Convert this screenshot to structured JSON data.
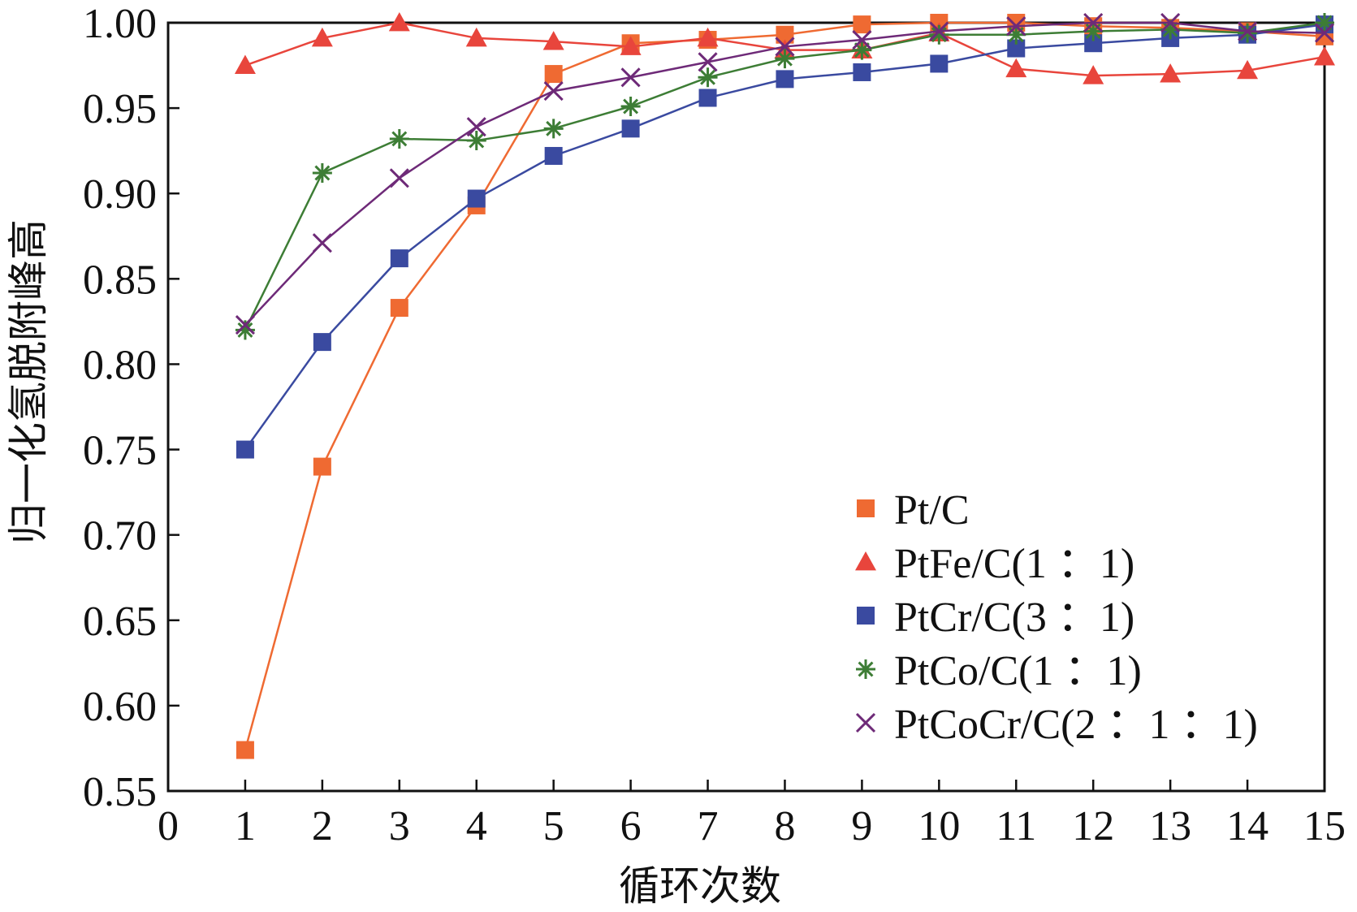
{
  "chart_data": {
    "type": "line",
    "title": "",
    "xlabel": "循环次数",
    "ylabel": "归一化氢脱附峰高",
    "xlim": [
      0,
      15
    ],
    "ylim": [
      0.55,
      1.0
    ],
    "xticks": [
      "0",
      "1",
      "2",
      "3",
      "4",
      "5",
      "6",
      "7",
      "8",
      "9",
      "10",
      "11",
      "12",
      "13",
      "14",
      "15"
    ],
    "yticks": [
      "0.55",
      "0.60",
      "0.65",
      "0.70",
      "0.75",
      "0.80",
      "0.85",
      "0.90",
      "0.95",
      "1.00"
    ],
    "legend_position": "bottom-right",
    "x": [
      1,
      2,
      3,
      4,
      5,
      6,
      7,
      8,
      9,
      10,
      11,
      12,
      13,
      14,
      15
    ],
    "series": [
      {
        "name": "Pt/C",
        "color": "#ef6a32",
        "marker": "square",
        "values": [
          0.574,
          0.74,
          0.833,
          0.893,
          0.97,
          0.988,
          0.99,
          0.993,
          0.999,
          1.0,
          1.0,
          0.998,
          0.997,
          0.995,
          0.992
        ]
      },
      {
        "name": "PtFe/C(1 ：1)",
        "color": "#e8453c",
        "marker": "triangle",
        "values": [
          0.975,
          0.991,
          1.0,
          0.991,
          0.989,
          0.986,
          0.991,
          0.984,
          0.984,
          0.994,
          0.973,
          0.969,
          0.97,
          0.972,
          0.98
        ]
      },
      {
        "name": "PtCr/C(3 ：1)",
        "color": "#3a4aa0",
        "marker": "square",
        "values": [
          0.75,
          0.813,
          0.862,
          0.897,
          0.922,
          0.938,
          0.956,
          0.967,
          0.971,
          0.976,
          0.985,
          0.988,
          0.991,
          0.993,
          0.999
        ]
      },
      {
        "name": "PtCo/C(1 ：1)",
        "color": "#3d7d35",
        "marker": "asterisk",
        "values": [
          0.82,
          0.912,
          0.932,
          0.931,
          0.938,
          0.951,
          0.968,
          0.979,
          0.984,
          0.993,
          0.993,
          0.995,
          0.996,
          0.994,
          1.0
        ]
      },
      {
        "name": "PtCoCr/C(2 ：1 ：1)",
        "color": "#6e2a78",
        "marker": "cross",
        "values": [
          0.823,
          0.871,
          0.909,
          0.939,
          0.96,
          0.968,
          0.977,
          0.986,
          0.99,
          0.995,
          0.998,
          1.0,
          1.0,
          0.995,
          0.994
        ]
      }
    ]
  }
}
